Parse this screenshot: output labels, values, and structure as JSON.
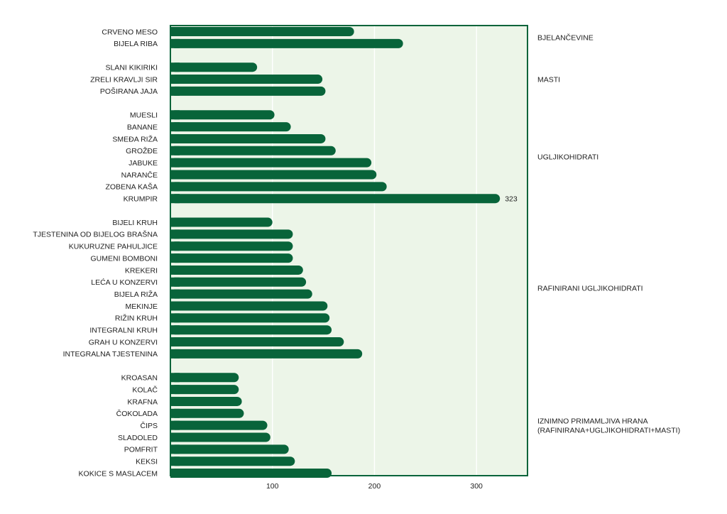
{
  "chart_data": {
    "type": "bar",
    "orientation": "horizontal",
    "title": "",
    "xlabel": "",
    "ylabel": "",
    "xlim": [
      0,
      350
    ],
    "x_ticks": [
      100,
      200,
      300
    ],
    "grid": "vertical",
    "colors": {
      "bar": "#08643a",
      "plot_background": "#ecf5e8",
      "frame": "#08643a",
      "grid": "#ffffff"
    },
    "groups": [
      {
        "name": "BJELANČEVINE",
        "categories": [
          "CRVENO MESO",
          "BIJELA RIBA"
        ],
        "values": [
          180,
          228
        ]
      },
      {
        "name": "MASTI",
        "categories": [
          "SLANI KIKIRIKI",
          "ZRELI KRAVLJI SIR",
          "POŠIRANA JAJA"
        ],
        "values": [
          85,
          149,
          152
        ]
      },
      {
        "name": "UGLJIKOHIDRATI",
        "categories": [
          "MUESLI",
          "BANANE",
          "SMEĐA RIŽA",
          "GROŽĐE",
          "JABUKE",
          "NARANČE",
          "ZOBENA KAŠA",
          "KRUMPIR"
        ],
        "values": [
          102,
          118,
          152,
          162,
          197,
          202,
          212,
          323
        ]
      },
      {
        "name": "RAFINIRANI UGLJIKOHIDRATI",
        "categories": [
          "BIJELI KRUH",
          "TJESTENINA OD BIJELOG BRAŠNA",
          "KUKURUZNE PAHULJICE",
          "GUMENI BOMBONI",
          "KREKERI",
          "LEĆA U KONZERVI",
          "BIJELA RIŽA",
          "MEKINJE",
          "RIŽIN KRUH",
          "INTEGRALNI KRUH",
          "GRAH U KONZERVI",
          "INTEGRALNA TJESTENINA"
        ],
        "values": [
          100,
          120,
          120,
          120,
          130,
          133,
          139,
          154,
          156,
          158,
          170,
          188
        ]
      },
      {
        "name": "IZNIMNO PRIMAMLJIVA HRANA\n(RAFINIRANA+UGLJIKOHIDRATI+MASTI)",
        "categories": [
          "KROASAN",
          "KOLAČ",
          "KRAFNA",
          "ČOKOLADA",
          "ČIPS",
          "SLADOLED",
          "POMFRIT",
          "KEKSI",
          "KOKICE S MASLACEM"
        ],
        "values": [
          67,
          67,
          70,
          72,
          95,
          98,
          116,
          122,
          158
        ]
      }
    ],
    "data_labels": [
      {
        "category": "KRUMPIR",
        "text": "323"
      }
    ]
  }
}
